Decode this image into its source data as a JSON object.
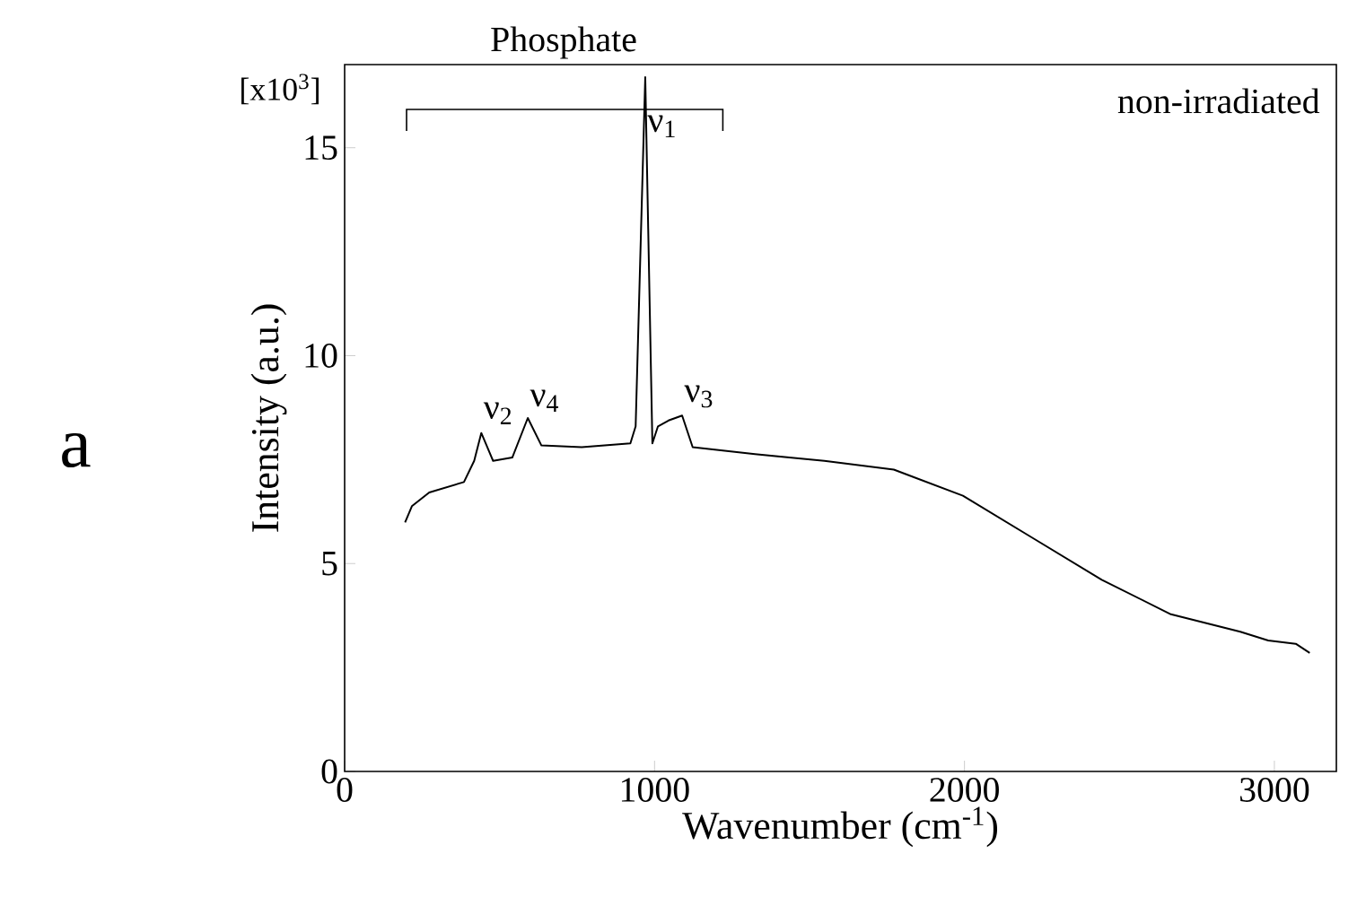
{
  "chart_data": {
    "type": "line",
    "xlabel": "Wavenumber (cm$^{-1}$)",
    "ylabel": "Intensity (a.u.)",
    "xlim": [
      0,
      3200
    ],
    "ylim": [
      0,
      17
    ],
    "xticks": [
      0,
      1000,
      2000,
      3000
    ],
    "yticks": [
      0,
      5,
      10,
      15
    ],
    "series": [
      {
        "color": "#000000",
        "x": [
          195,
          217,
          273,
          385,
          418,
          441,
          479,
          541,
          591,
          635,
          765,
          922,
          939,
          970,
          993,
          1011,
          1045,
          1067,
          1089,
          1123,
          1324,
          1548,
          1772,
          1995,
          2219,
          2443,
          2666,
          2890,
          2980,
          3069,
          3114
        ],
        "values": [
          5.99,
          6.38,
          6.71,
          6.96,
          7.47,
          8.14,
          7.47,
          7.55,
          8.5,
          7.84,
          7.8,
          7.89,
          8.3,
          16.7,
          7.89,
          8.3,
          8.44,
          8.5,
          8.56,
          7.8,
          7.63,
          7.47,
          7.26,
          6.63,
          5.62,
          4.61,
          3.78,
          3.36,
          3.15,
          3.07,
          2.85
        ]
      }
    ],
    "annotations": [
      {
        "text": "ν$_{1}$",
        "x": 970,
        "y": 15.2
      },
      "Phosphate",
      {
        "text": "ν$_{2}$",
        "x": 441,
        "y": 8.3
      },
      {
        "text": "ν$_{4}$",
        "x": 591,
        "y": 8.6
      },
      {
        "text": "ν$_{3}$",
        "x": 1089,
        "y": 8.7
      },
      "non-irradiated",
      "[x10$^{3}$]",
      "a"
    ]
  }
}
